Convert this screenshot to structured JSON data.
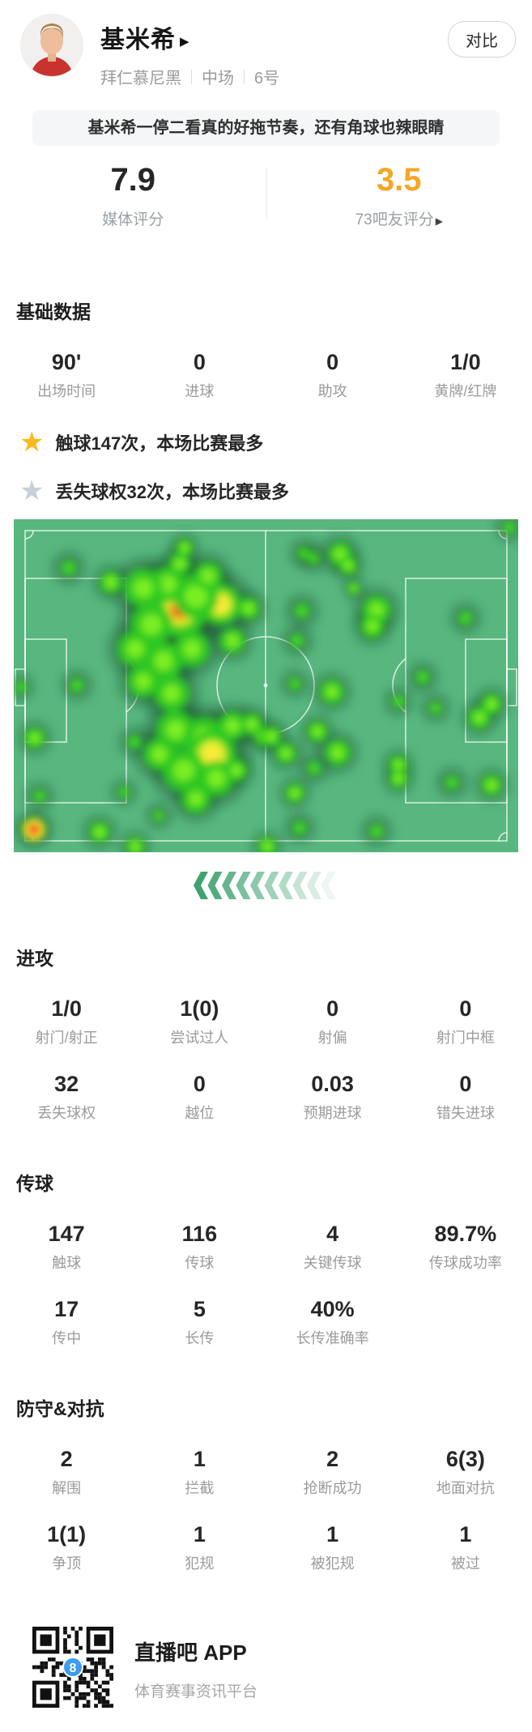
{
  "player": {
    "name": "基米希",
    "name_arrow": "▶",
    "team": "拜仁慕尼黑",
    "position": "中场",
    "number": "6号",
    "compare_label": "对比"
  },
  "banner": "基米希一停二看真的好拖节奏，还有角球也辣眼睛",
  "ratings": {
    "media": {
      "value": "7.9",
      "label": "媒体评分",
      "color": "#262626"
    },
    "fans": {
      "value": "3.5",
      "label": "73吧友评分",
      "arrow": "▶",
      "color": "#f5a623"
    }
  },
  "basic": {
    "title": "基础数据",
    "stats": [
      {
        "value": "90'",
        "label": "出场时间"
      },
      {
        "value": "0",
        "label": "进球"
      },
      {
        "value": "0",
        "label": "助攻"
      },
      {
        "value": "1/0",
        "label": "黄牌/红牌"
      }
    ]
  },
  "highlights": [
    {
      "icon": "star-gold",
      "color": "#ffb81e",
      "text": "触球147次，本场比赛最多"
    },
    {
      "icon": "star-gray",
      "color": "#c9ced8",
      "text": "丢失球权32次，本场比赛最多"
    }
  ],
  "heatmap": {
    "type": "heatmap",
    "description": "player touch heatmap on football pitch, attacking direction left",
    "pitch_color": "#58b77e",
    "line_color": "rgba(255,255,255,0.8)",
    "levels": {
      "1": "dim-green",
      "2": "bright-green",
      "3": "yellow-core",
      "4": "red-core"
    },
    "points": [
      [
        205,
        112,
        34,
        4
      ],
      [
        255,
        105,
        26,
        3
      ],
      [
        225,
        95,
        28,
        2
      ],
      [
        190,
        80,
        22,
        2
      ],
      [
        160,
        85,
        24,
        2
      ],
      [
        170,
        130,
        26,
        2
      ],
      [
        150,
        160,
        22,
        2
      ],
      [
        185,
        175,
        24,
        2
      ],
      [
        220,
        160,
        22,
        2
      ],
      [
        160,
        200,
        20,
        2
      ],
      [
        195,
        215,
        22,
        2
      ],
      [
        270,
        150,
        16,
        2
      ],
      [
        290,
        110,
        14,
        2
      ],
      [
        240,
        70,
        18,
        2
      ],
      [
        205,
        55,
        14,
        2
      ],
      [
        211,
        35,
        11,
        2
      ],
      [
        68,
        60,
        13,
        1
      ],
      [
        120,
        78,
        14,
        2
      ],
      [
        358,
        42,
        11,
        1
      ],
      [
        370,
        48,
        11,
        1
      ],
      [
        403,
        43,
        15,
        2
      ],
      [
        413,
        57,
        12,
        2
      ],
      [
        420,
        85,
        8,
        2
      ],
      [
        448,
        112,
        18,
        2
      ],
      [
        443,
        132,
        15,
        2
      ],
      [
        558,
        122,
        12,
        1
      ],
      [
        505,
        195,
        12,
        1
      ],
      [
        393,
        213,
        15,
        2
      ],
      [
        350,
        150,
        12,
        1
      ],
      [
        356,
        113,
        13,
        1
      ],
      [
        347,
        203,
        11,
        1
      ],
      [
        9,
        207,
        10,
        1
      ],
      [
        78,
        205,
        12,
        1
      ],
      [
        26,
        270,
        13,
        2
      ],
      [
        32,
        342,
        11,
        1
      ],
      [
        200,
        260,
        24,
        2
      ],
      [
        235,
        270,
        26,
        2
      ],
      [
        245,
        290,
        30,
        3
      ],
      [
        210,
        310,
        26,
        2
      ],
      [
        250,
        320,
        22,
        2
      ],
      [
        180,
        290,
        20,
        2
      ],
      [
        225,
        345,
        18,
        2
      ],
      [
        270,
        255,
        18,
        2
      ],
      [
        294,
        253,
        14,
        2
      ],
      [
        275,
        310,
        14,
        2
      ],
      [
        149,
        275,
        12,
        1
      ],
      [
        179,
        366,
        10,
        1
      ],
      [
        308,
        268,
        12,
        2
      ],
      [
        318,
        268,
        13,
        2
      ],
      [
        336,
        289,
        13,
        2
      ],
      [
        347,
        338,
        12,
        2
      ],
      [
        375,
        262,
        13,
        2
      ],
      [
        400,
        288,
        16,
        2
      ],
      [
        475,
        303,
        12,
        2
      ],
      [
        475,
        320,
        12,
        2
      ],
      [
        541,
        325,
        12,
        1
      ],
      [
        590,
        328,
        13,
        2
      ],
      [
        575,
        245,
        14,
        2
      ],
      [
        590,
        228,
        13,
        2
      ],
      [
        475,
        225,
        11,
        1
      ],
      [
        521,
        233,
        11,
        1
      ],
      [
        448,
        385,
        12,
        1
      ],
      [
        353,
        381,
        12,
        1
      ],
      [
        371,
        307,
        12,
        1
      ],
      [
        106,
        386,
        13,
        2
      ],
      [
        150,
        404,
        12,
        2
      ],
      [
        313,
        404,
        12,
        2
      ],
      [
        136,
        337,
        10,
        1
      ],
      [
        612,
        10,
        11,
        1
      ],
      [
        25,
        383,
        16,
        5
      ]
    ]
  },
  "chevrons": {
    "count": 10,
    "start_color": "#3ea372",
    "end_color": "#eef6f1"
  },
  "attack": {
    "title": "进攻",
    "stats": [
      {
        "value": "1/0",
        "label": "射门/射正"
      },
      {
        "value": "1(0)",
        "label": "尝试过人"
      },
      {
        "value": "0",
        "label": "射偏"
      },
      {
        "value": "0",
        "label": "射门中框"
      },
      {
        "value": "32",
        "label": "丢失球权"
      },
      {
        "value": "0",
        "label": "越位"
      },
      {
        "value": "0.03",
        "label": "预期进球"
      },
      {
        "value": "0",
        "label": "错失进球"
      }
    ]
  },
  "passing": {
    "title": "传球",
    "stats": [
      {
        "value": "147",
        "label": "触球"
      },
      {
        "value": "116",
        "label": "传球"
      },
      {
        "value": "4",
        "label": "关键传球"
      },
      {
        "value": "89.7%",
        "label": "传球成功率"
      },
      {
        "value": "17",
        "label": "传中"
      },
      {
        "value": "5",
        "label": "长传"
      },
      {
        "value": "40%",
        "label": "长传准确率"
      },
      {
        "value": "",
        "label": ""
      }
    ]
  },
  "defense": {
    "title": "防守&对抗",
    "stats": [
      {
        "value": "2",
        "label": "解围"
      },
      {
        "value": "1",
        "label": "拦截"
      },
      {
        "value": "2",
        "label": "抢断成功"
      },
      {
        "value": "6(3)",
        "label": "地面对抗"
      },
      {
        "value": "1(1)",
        "label": "争顶"
      },
      {
        "value": "1",
        "label": "犯规"
      },
      {
        "value": "1",
        "label": "被犯规"
      },
      {
        "value": "1",
        "label": "被过"
      }
    ]
  },
  "footer": {
    "app_name": "直播吧 APP",
    "tagline": "体育赛事资讯平台",
    "qr_badge": "8",
    "qr_badge_color": "#3b9cf0"
  }
}
